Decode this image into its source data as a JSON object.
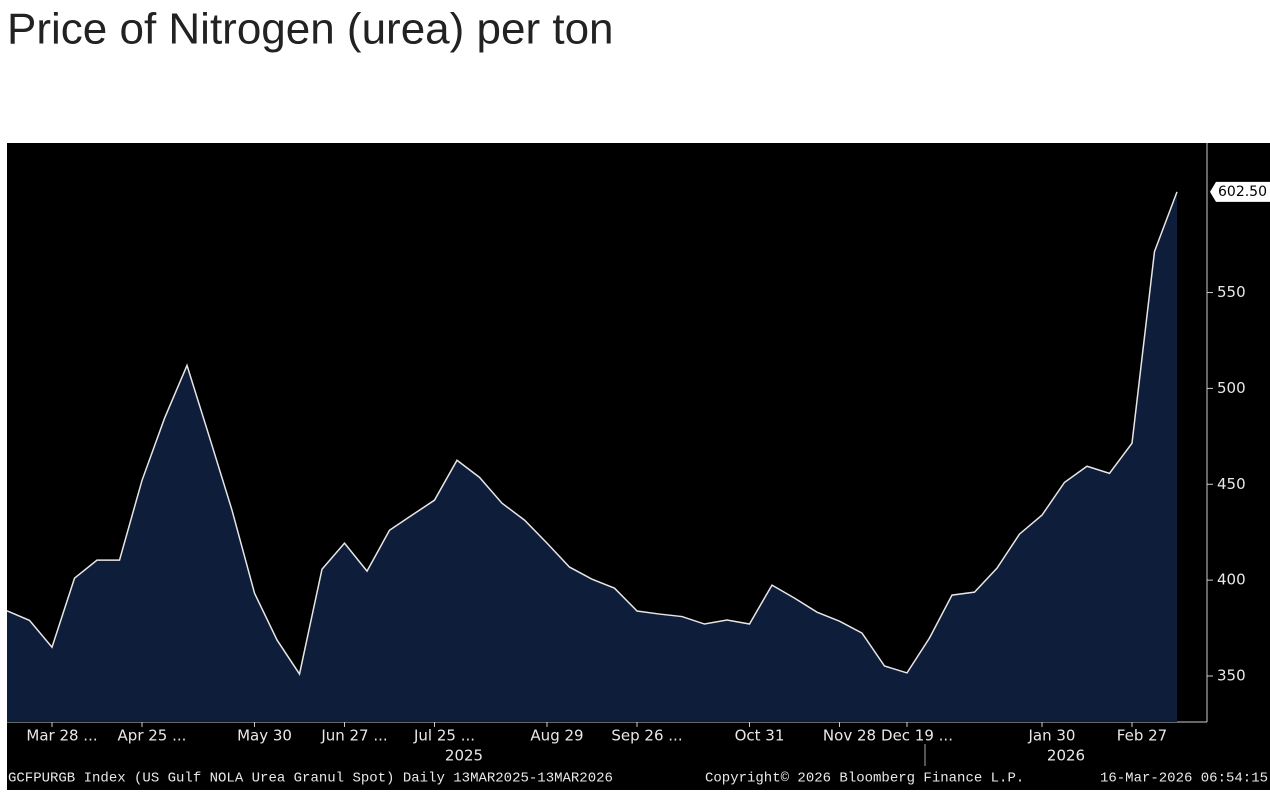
{
  "chart_data": {
    "type": "area",
    "title": "Price of Nitrogen (urea) per ton",
    "values": [
      384,
      379,
      365,
      401,
      410.4,
      410.4,
      452,
      484.4,
      512,
      474.5,
      436.5,
      393.2,
      368.8,
      351,
      405.7,
      419.3,
      404.7,
      426,
      433.9,
      441.7,
      462.5,
      453.6,
      440.1,
      431.3,
      419.3,
      406.8,
      400.5,
      395.8,
      383.9,
      382.3,
      381,
      377.1,
      379.2,
      377.1,
      397.4,
      390.6,
      383.3,
      378.6,
      372.4,
      355.2,
      351.6,
      369.8,
      392.2,
      393.75,
      406.25,
      424,
      433.9,
      451,
      459.4,
      455.7,
      471.4,
      571.4,
      602.5
    ],
    "value_labels": [
      null,
      null,
      null,
      null,
      null,
      null,
      null,
      null,
      null,
      null,
      null,
      null,
      null,
      null,
      null,
      null,
      null,
      null,
      null,
      null,
      null,
      null,
      null,
      null,
      null,
      null,
      null,
      null,
      null,
      null,
      null,
      null,
      null,
      null,
      null,
      null,
      null,
      null,
      null,
      null,
      null,
      null,
      null,
      null,
      null,
      null,
      null,
      null,
      null,
      null,
      null,
      null,
      "602.50"
    ],
    "color": "#0e1d3a",
    "line_color": "#e6e6e6",
    "ylim": [
      326,
      628
    ],
    "yticks": [
      350,
      400,
      450,
      500,
      550
    ],
    "xticks": [
      {
        "value": 2,
        "label": "Mar 28 ..."
      },
      {
        "value": 6,
        "label": "Apr 25 ..."
      },
      {
        "value": 11,
        "label": "May 30"
      },
      {
        "value": 15,
        "label": "Jun 27 ..."
      },
      {
        "value": 19,
        "label": "Jul 25 ..."
      },
      {
        "value": 24,
        "label": "Aug 29"
      },
      {
        "value": 28,
        "label": "Sep 26 ..."
      },
      {
        "value": 33,
        "label": "Oct 31"
      },
      {
        "value": 37,
        "label": "Nov 28"
      },
      {
        "value": 40,
        "label": "Dec 19 ..."
      },
      {
        "value": 46,
        "label": "Jan 30"
      },
      {
        "value": 50,
        "label": "Feb 27"
      }
    ],
    "years": [
      "2025",
      "2026"
    ],
    "footer": {
      "source": "GCFPURGB Index (US Gulf NOLA Urea Granul Spot) Daily 13MAR2025-13MAR2026",
      "copyright": "Copyright© 2026 Bloomberg Finance L.P.",
      "timestamp": "16-Mar-2026 06:54:15"
    }
  }
}
